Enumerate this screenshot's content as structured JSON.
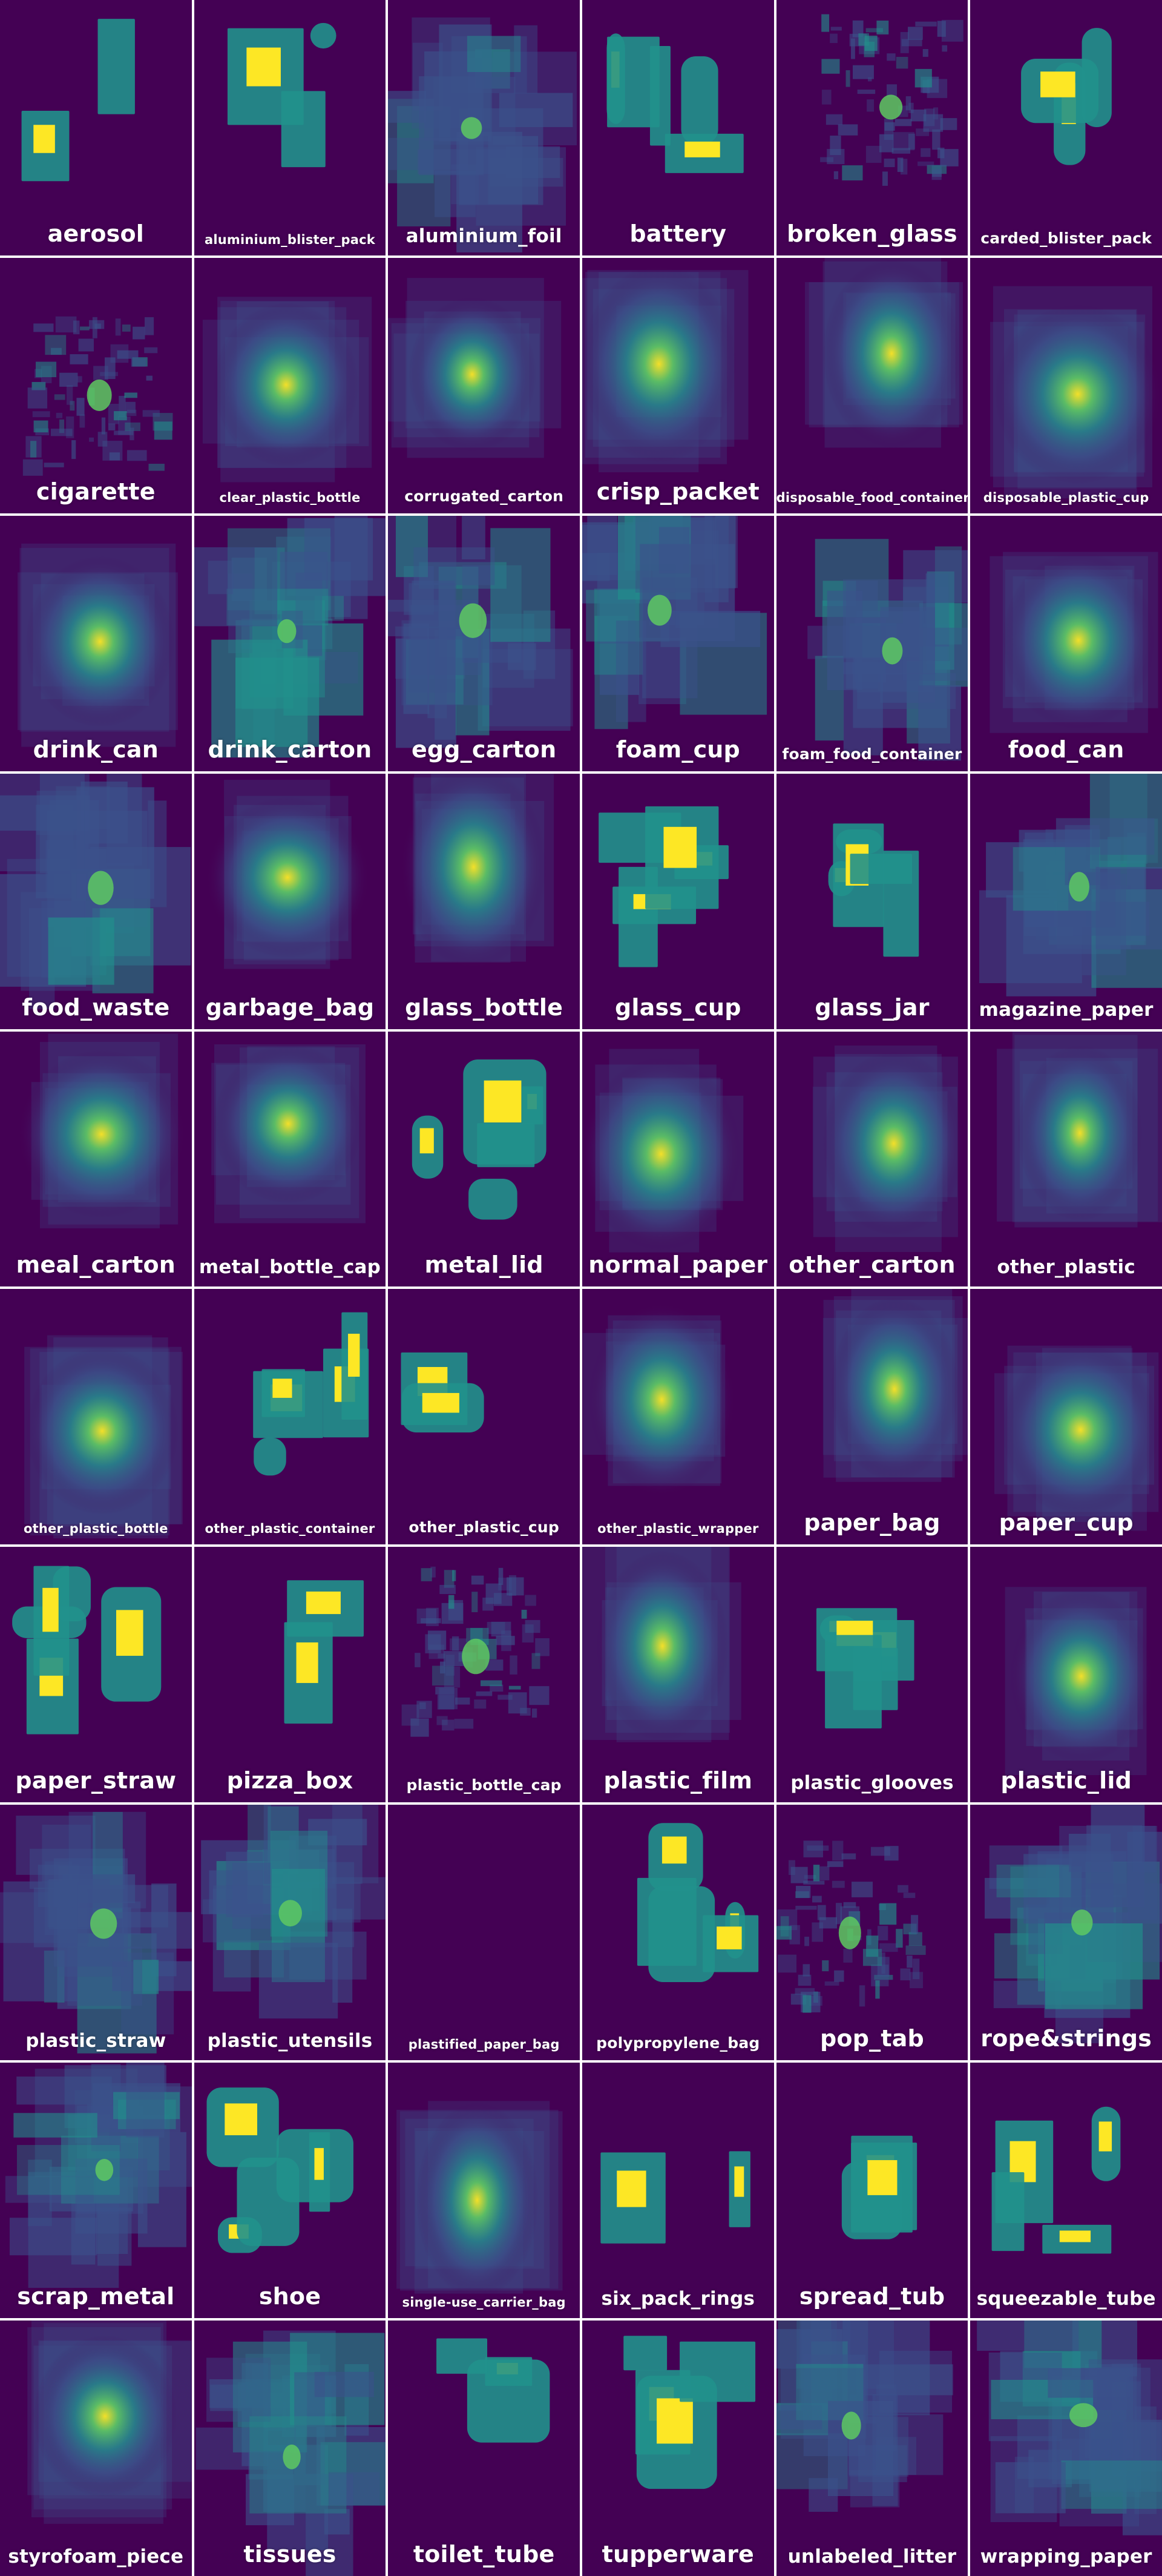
{
  "grid": {
    "categories": [
      "aerosol",
      "aluminium_blister_pack",
      "aluminium_foil",
      "battery",
      "broken_glass",
      "carded_blister_pack",
      "cigarette",
      "clear_plastic_bottle",
      "corrugated_carton",
      "crisp_packet",
      "disposable_food_container",
      "disposable_plastic_cup",
      "drink_can",
      "drink_carton",
      "egg_carton",
      "foam_cup",
      "foam_food_container",
      "food_can",
      "food_waste",
      "garbage_bag",
      "glass_bottle",
      "glass_cup",
      "glass_jar",
      "magazine_paper",
      "meal_carton",
      "metal_bottle_cap",
      "metal_lid",
      "normal_paper",
      "other_carton",
      "other_plastic",
      "other_plastic_bottle",
      "other_plastic_container",
      "other_plastic_cup",
      "other_plastic_wrapper",
      "paper_bag",
      "paper_cup",
      "paper_straw",
      "pizza_box",
      "plastic_bottle_cap",
      "plastic_film",
      "plastic_glooves",
      "plastic_lid",
      "plastic_straw",
      "plastic_utensils",
      "plastified_paper_bag",
      "polypropylene_bag",
      "pop_tab",
      "rope&strings",
      "scrap_metal",
      "shoe",
      "single-use_carrier_bag",
      "six_pack_rings",
      "spread_tub",
      "squeezable_tube",
      "styrofoam_piece",
      "tissues",
      "toilet_tube",
      "tupperware",
      "unlabeled_litter",
      "wrapping_paper"
    ],
    "colors": {
      "background": "#440154",
      "low": "#3b528b",
      "mid": "#21918c",
      "high": "#5ec962",
      "peak": "#fde725"
    }
  }
}
